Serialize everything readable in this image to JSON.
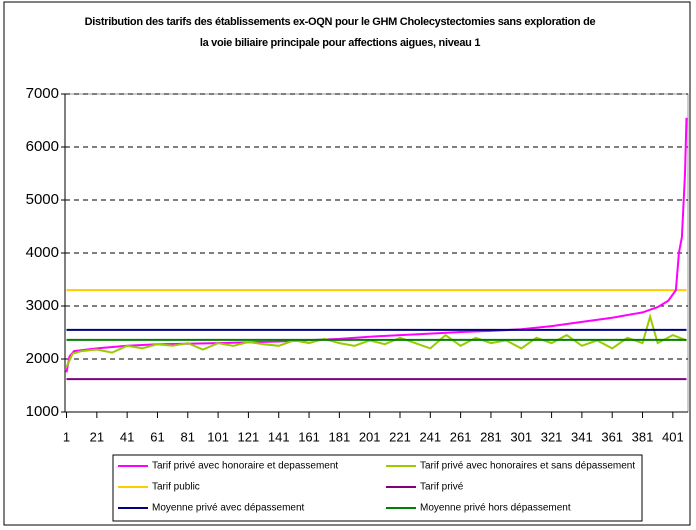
{
  "chart_data": {
    "type": "line",
    "title": "Distribution des tarifs des établissements ex-OQN pour le GHM Cholecystectomies sans exploration de la voie biliaire principale pour affections aigues, niveau 1",
    "xlim": [
      0,
      411
    ],
    "xticks": [
      1,
      21,
      41,
      61,
      81,
      101,
      121,
      141,
      161,
      181,
      201,
      221,
      241,
      261,
      281,
      301,
      321,
      341,
      361,
      381,
      401
    ],
    "ylim": [
      1000,
      7000
    ],
    "yticks": [
      1000,
      2000,
      3000,
      4000,
      5000,
      6000,
      7000
    ],
    "grid": true,
    "series": [
      {
        "name": "Tarif privé avec honoraire et depassement",
        "color": "#ff00ff",
        "x": [
          1,
          3,
          6,
          21,
          41,
          61,
          101,
          141,
          181,
          201,
          221,
          241,
          261,
          281,
          301,
          321,
          341,
          361,
          381,
          391,
          398,
          403,
          405,
          407,
          409,
          410
        ],
        "values": [
          1750,
          2050,
          2150,
          2200,
          2250,
          2280,
          2300,
          2330,
          2380,
          2420,
          2450,
          2480,
          2510,
          2530,
          2560,
          2620,
          2700,
          2780,
          2880,
          2980,
          3100,
          3300,
          4000,
          4300,
          5500,
          6550
        ]
      },
      {
        "name": "Tarif privé avec honoraires et sans dépassement",
        "color": "#99cc00",
        "x": [
          1,
          5,
          11,
          21,
          31,
          41,
          51,
          61,
          71,
          81,
          91,
          101,
          111,
          121,
          131,
          141,
          151,
          161,
          171,
          181,
          191,
          201,
          211,
          221,
          231,
          241,
          251,
          261,
          271,
          281,
          291,
          301,
          311,
          321,
          331,
          341,
          351,
          361,
          371,
          381,
          386,
          391,
          401,
          410
        ],
        "values": [
          1850,
          2100,
          2150,
          2180,
          2120,
          2250,
          2200,
          2280,
          2250,
          2300,
          2180,
          2300,
          2250,
          2320,
          2280,
          2250,
          2350,
          2300,
          2380,
          2300,
          2250,
          2350,
          2280,
          2400,
          2300,
          2200,
          2450,
          2250,
          2400,
          2300,
          2350,
          2200,
          2400,
          2300,
          2450,
          2250,
          2350,
          2200,
          2400,
          2300,
          2800,
          2300,
          2450,
          2350
        ]
      },
      {
        "name": "Tarif public",
        "color": "#ffcc00",
        "x": [
          1,
          410
        ],
        "values": [
          3300,
          3300
        ]
      },
      {
        "name": "Tarif privé",
        "color": "#800080",
        "x": [
          1,
          410
        ],
        "values": [
          1620,
          1620
        ]
      },
      {
        "name": "Moyenne privé avec dépassement",
        "color": "#000080",
        "x": [
          1,
          410
        ],
        "values": [
          2550,
          2550
        ]
      },
      {
        "name": "Moyenne privé hors dépassement",
        "color": "#008000",
        "x": [
          1,
          410
        ],
        "values": [
          2360,
          2360
        ]
      }
    ]
  }
}
